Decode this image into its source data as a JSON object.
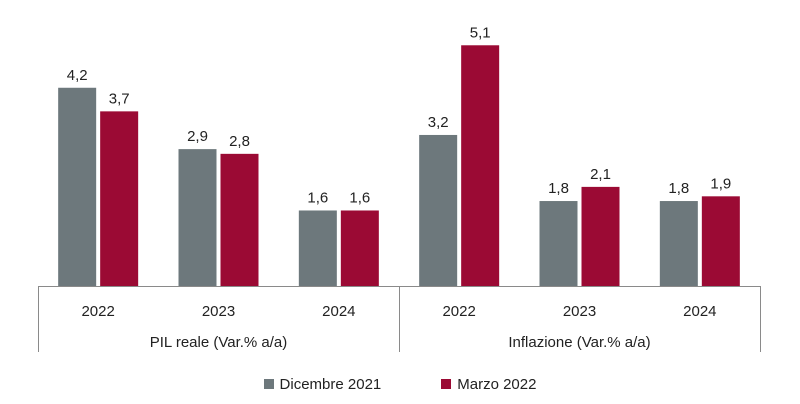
{
  "chart_data": {
    "type": "bar",
    "groups": [
      {
        "label": "PIL reale (Var.% a/a)",
        "categories": [
          "2022",
          "2023",
          "2024"
        ]
      },
      {
        "label": "Inflazione (Var.% a/a)",
        "categories": [
          "2022",
          "2023",
          "2024"
        ]
      }
    ],
    "series": [
      {
        "name": "Dicembre 2021",
        "color": "#6d787c",
        "values": [
          4.2,
          2.9,
          1.6,
          3.2,
          1.8,
          1.8
        ],
        "labels": [
          "4,2",
          "2,9",
          "1,6",
          "3,2",
          "1,8",
          "1,8"
        ]
      },
      {
        "name": "Marzo 2022",
        "color": "#9b0a34",
        "values": [
          3.7,
          2.8,
          1.6,
          5.1,
          2.1,
          1.9
        ],
        "labels": [
          "3,7",
          "2,8",
          "1,6",
          "5,1",
          "2,1",
          "1,9"
        ]
      }
    ],
    "ylim": [
      0,
      5.5
    ],
    "grid": false,
    "legend_position": "bottom-center"
  }
}
